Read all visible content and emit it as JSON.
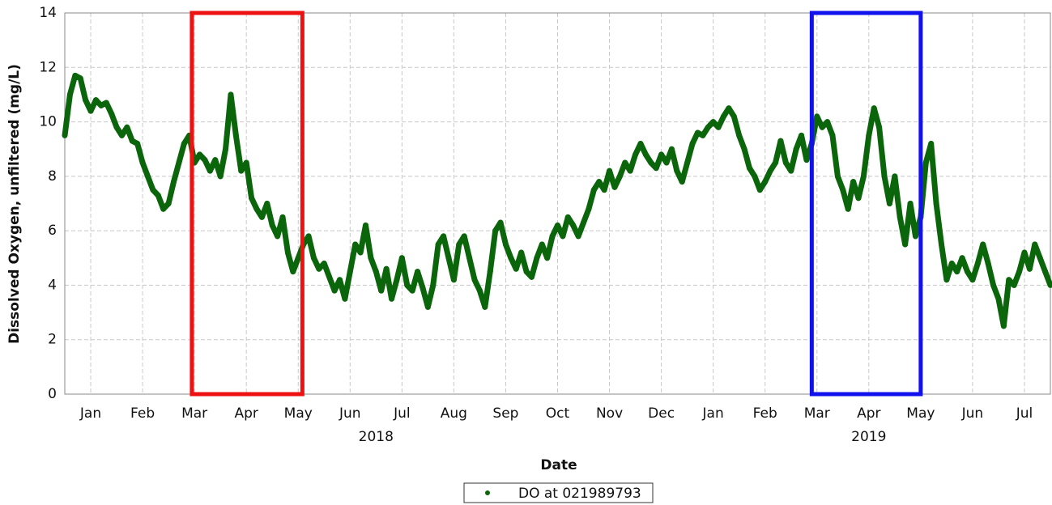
{
  "chart_data": {
    "type": "scatter",
    "ylabel": "Dissolved Oxygen, unfiltered (mg/L)",
    "xlabel": "Date",
    "xlim": [
      0,
      19
    ],
    "ylim": [
      0,
      14
    ],
    "yticks": [
      0,
      2,
      4,
      6,
      8,
      10,
      12,
      14
    ],
    "xticks": [
      {
        "value": 0.5,
        "label": "Jan"
      },
      {
        "value": 1.5,
        "label": "Feb"
      },
      {
        "value": 2.5,
        "label": "Mar"
      },
      {
        "value": 3.5,
        "label": "Apr"
      },
      {
        "value": 4.5,
        "label": "May"
      },
      {
        "value": 5.5,
        "label": "Jun"
      },
      {
        "value": 6.5,
        "label": "Jul"
      },
      {
        "value": 7.5,
        "label": "Aug"
      },
      {
        "value": 8.5,
        "label": "Sep"
      },
      {
        "value": 9.5,
        "label": "Oct"
      },
      {
        "value": 10.5,
        "label": "Nov"
      },
      {
        "value": 11.5,
        "label": "Dec"
      },
      {
        "value": 12.5,
        "label": "Jan"
      },
      {
        "value": 13.5,
        "label": "Feb"
      },
      {
        "value": 14.5,
        "label": "Mar"
      },
      {
        "value": 15.5,
        "label": "Apr"
      },
      {
        "value": 16.5,
        "label": "May"
      },
      {
        "value": 17.5,
        "label": "Jun"
      },
      {
        "value": 18.5,
        "label": "Jul"
      }
    ],
    "xgroups": [
      {
        "value": 6,
        "label": "2018"
      },
      {
        "value": 15.5,
        "label": "2019"
      }
    ],
    "grid": true,
    "legend": "bottom",
    "highlights": [
      {
        "x": [
          2.45,
          4.58
        ],
        "color": "#ee1111"
      },
      {
        "x": [
          14.4,
          16.5
        ],
        "color": "#1111ee"
      }
    ],
    "x": [
      0,
      0.1,
      0.2,
      0.3,
      0.4,
      0.5,
      0.6,
      0.7,
      0.8,
      0.9,
      1,
      1.1,
      1.2,
      1.3,
      1.4,
      1.5,
      1.6,
      1.7,
      1.8,
      1.9,
      2,
      2.1,
      2.2,
      2.3,
      2.4,
      2.5,
      2.6,
      2.7,
      2.8,
      2.9,
      3,
      3.1,
      3.2,
      3.3,
      3.4,
      3.5,
      3.6,
      3.7,
      3.8,
      3.9,
      4,
      4.1,
      4.2,
      4.3,
      4.4,
      4.5,
      4.6,
      4.7,
      4.8,
      4.9,
      5,
      5.1,
      5.2,
      5.3,
      5.4,
      5.5,
      5.6,
      5.7,
      5.8,
      5.9,
      6,
      6.1,
      6.2,
      6.3,
      6.4,
      6.5,
      6.6,
      6.7,
      6.8,
      6.9,
      7,
      7.1,
      7.2,
      7.3,
      7.4,
      7.5,
      7.6,
      7.7,
      7.8,
      7.9,
      8,
      8.1,
      8.2,
      8.3,
      8.4,
      8.5,
      8.6,
      8.7,
      8.8,
      8.9,
      9,
      9.1,
      9.2,
      9.3,
      9.4,
      9.5,
      9.6,
      9.7,
      9.8,
      9.9,
      10,
      10.1,
      10.2,
      10.3,
      10.4,
      10.5,
      10.6,
      10.7,
      10.8,
      10.9,
      11,
      11.1,
      11.2,
      11.3,
      11.4,
      11.5,
      11.6,
      11.7,
      11.8,
      11.9,
      12,
      12.1,
      12.2,
      12.3,
      12.4,
      12.5,
      12.6,
      12.7,
      12.8,
      12.9,
      13,
      13.1,
      13.2,
      13.3,
      13.4,
      13.5,
      13.6,
      13.7,
      13.8,
      13.9,
      14,
      14.1,
      14.2,
      14.3,
      14.4,
      14.5,
      14.6,
      14.7,
      14.8,
      14.9,
      15,
      15.1,
      15.2,
      15.3,
      15.4,
      15.5,
      15.6,
      15.7,
      15.8,
      15.9,
      16,
      16.1,
      16.2,
      16.3,
      16.4,
      16.5,
      16.6,
      16.7,
      16.8,
      16.9,
      17,
      17.1,
      17.2,
      17.3,
      17.4,
      17.5,
      17.6,
      17.7,
      17.8,
      17.9,
      18,
      18.1,
      18.2,
      18.3,
      18.4,
      18.5,
      18.6,
      18.7,
      18.8,
      18.9,
      19
    ],
    "series": [
      {
        "name": "DO at 021989793",
        "color": "#0b650b",
        "values": [
          9.5,
          11.0,
          11.7,
          11.6,
          10.8,
          10.4,
          10.8,
          10.6,
          10.7,
          10.3,
          9.8,
          9.5,
          9.8,
          9.3,
          9.2,
          8.5,
          8.0,
          7.5,
          7.3,
          6.8,
          7.0,
          7.8,
          8.5,
          9.2,
          9.5,
          8.5,
          8.8,
          8.6,
          8.2,
          8.6,
          8.0,
          9.0,
          11.0,
          9.5,
          8.2,
          8.5,
          7.2,
          6.8,
          6.5,
          7.0,
          6.2,
          5.8,
          6.5,
          5.2,
          4.5,
          5.0,
          5.5,
          5.8,
          5.0,
          4.6,
          4.8,
          4.3,
          3.8,
          4.2,
          3.5,
          4.5,
          5.5,
          5.2,
          6.2,
          5.0,
          4.5,
          3.8,
          4.6,
          3.5,
          4.2,
          5.0,
          4.0,
          3.8,
          4.5,
          3.9,
          3.2,
          4.0,
          5.5,
          5.8,
          5.0,
          4.2,
          5.5,
          5.8,
          5.0,
          4.2,
          3.8,
          3.2,
          4.5,
          6.0,
          6.3,
          5.5,
          5.0,
          4.6,
          5.2,
          4.5,
          4.3,
          5.0,
          5.5,
          5.0,
          5.8,
          6.2,
          5.8,
          6.5,
          6.2,
          5.8,
          6.3,
          6.8,
          7.5,
          7.8,
          7.5,
          8.2,
          7.6,
          8.0,
          8.5,
          8.2,
          8.8,
          9.2,
          8.8,
          8.5,
          8.3,
          8.8,
          8.5,
          9.0,
          8.2,
          7.8,
          8.5,
          9.2,
          9.6,
          9.5,
          9.8,
          10.0,
          9.8,
          10.2,
          10.5,
          10.2,
          9.5,
          9.0,
          8.3,
          8.0,
          7.5,
          7.8,
          8.2,
          8.5,
          9.3,
          8.5,
          8.2,
          9.0,
          9.5,
          8.6,
          9.2,
          10.2,
          9.8,
          10.0,
          9.5,
          8.0,
          7.5,
          6.8,
          7.8,
          7.2,
          8.0,
          9.5,
          10.5,
          9.8,
          8.0,
          7.0,
          8.0,
          6.5,
          5.5,
          7.0,
          5.8,
          6.5,
          8.5,
          9.2,
          7.0,
          5.5,
          4.2,
          4.8,
          4.5,
          5.0,
          4.5,
          4.2,
          4.8,
          5.5,
          4.8,
          4.0,
          3.5,
          2.5,
          4.2,
          4.0,
          4.5,
          5.2,
          4.6,
          5.5,
          5.0,
          4.5,
          4.0
        ]
      }
    ]
  }
}
